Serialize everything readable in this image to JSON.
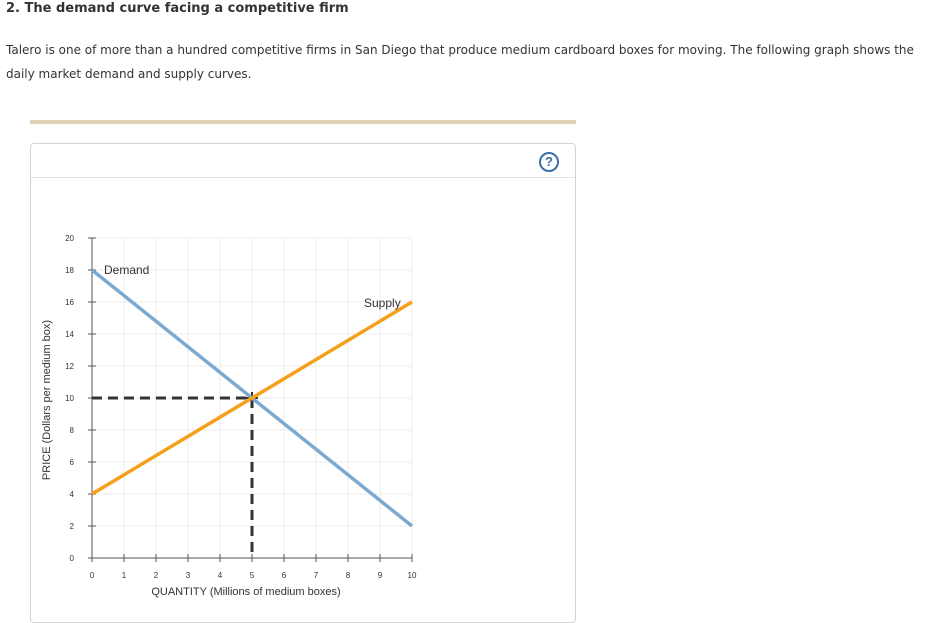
{
  "question": {
    "title": "2. The demand curve facing a competitive firm",
    "text": "Talero is one of more than a hundred competitive firms in San Diego that produce medium cardboard boxes for moving. The following graph shows the daily market demand and supply curves."
  },
  "help": {
    "label": "?",
    "icon": "question-circle-icon"
  },
  "colors": {
    "demand": "#7ca9cf",
    "supply": "#f5a01d",
    "grid": "#eeeeee",
    "axis": "#555555",
    "guide": "#333333"
  },
  "chart_data": {
    "type": "line",
    "xlabel": "QUANTITY (Millions of medium boxes)",
    "ylabel": "PRICE (Dollars per medium box)",
    "xlim": [
      0,
      10
    ],
    "ylim": [
      0,
      20
    ],
    "xticks": [
      "0",
      "1",
      "2",
      "3",
      "4",
      "5",
      "6",
      "7",
      "8",
      "9",
      "10"
    ],
    "yticks": [
      "0",
      "2",
      "4",
      "6",
      "8",
      "10",
      "12",
      "14",
      "16",
      "18",
      "20"
    ],
    "grid": true,
    "series": [
      {
        "name": "Demand",
        "x": [
          0,
          10
        ],
        "y": [
          18,
          2
        ]
      },
      {
        "name": "Supply",
        "x": [
          0,
          10
        ],
        "y": [
          4,
          16
        ]
      }
    ],
    "equilibrium": {
      "x": 5,
      "y": 10
    }
  }
}
